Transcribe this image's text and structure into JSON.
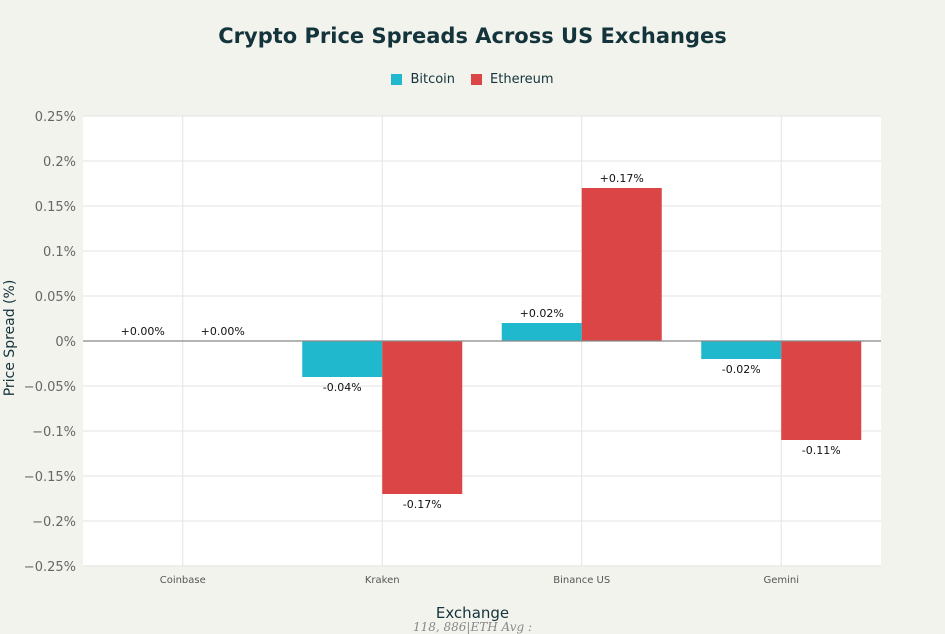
{
  "chart_data": {
    "type": "bar",
    "title": "Crypto Price Spreads Across US Exchanges",
    "xlabel": "Exchange",
    "ylabel": "Price Spread (%)",
    "categories": [
      "Coinbase",
      "Kraken",
      "Binance US",
      "Gemini"
    ],
    "series": [
      {
        "name": "Bitcoin",
        "color": "#1fb8cd",
        "values": [
          0.0,
          -0.04,
          0.02,
          -0.02
        ],
        "labels": [
          "+0.00%",
          "-0.04%",
          "+0.02%",
          "-0.02%"
        ]
      },
      {
        "name": "Ethereum",
        "color": "#db4545",
        "values": [
          0.0,
          -0.17,
          0.17,
          -0.11
        ],
        "labels": [
          "+0.00%",
          "-0.17%",
          "+0.17%",
          "-0.11%"
        ]
      }
    ],
    "ylim": [
      -0.25,
      0.25
    ],
    "yticks": [
      0.25,
      0.2,
      0.15,
      0.1,
      0.05,
      0,
      -0.05,
      -0.1,
      -0.15,
      -0.2,
      -0.25
    ],
    "ytick_labels": [
      "0.25%",
      "0.2%",
      "0.15%",
      "0.1%",
      "0.05%",
      "0%",
      "−0.05%",
      "−0.1%",
      "−0.15%",
      "−0.2%",
      "−0.25%"
    ],
    "grid": true,
    "legend": "top-center",
    "footnote": "118, 886|ETH Avg :"
  }
}
